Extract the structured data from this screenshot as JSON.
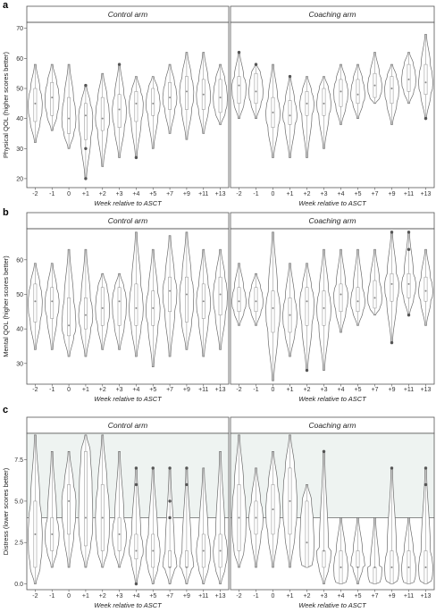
{
  "chart_data": [
    {
      "panel": "a",
      "type": "violin",
      "ylabel": "Physical QOL (higher scores better)",
      "xlabel": "Week relative to ASCT",
      "ylim": [
        17,
        72
      ],
      "yticks": [
        20,
        30,
        40,
        50,
        60,
        70
      ],
      "categories": [
        "-2",
        "-1",
        "0",
        "+1",
        "+2",
        "+3",
        "+4",
        "+5",
        "+7",
        "+9",
        "+11",
        "+13"
      ],
      "facets": [
        {
          "name": "Control arm",
          "groups": [
            {
              "min": 32,
              "q1": 39,
              "median": 45,
              "q3": 50,
              "max": 58
            },
            {
              "min": 36,
              "q1": 41,
              "median": 47,
              "q3": 52,
              "max": 58
            },
            {
              "min": 30,
              "q1": 35,
              "median": 40,
              "q3": 47,
              "max": 58
            },
            {
              "min": 20,
              "q1": 33,
              "median": 41,
              "q3": 45,
              "max": 51,
              "outliers": [
                20,
                30,
                51
              ]
            },
            {
              "min": 24,
              "q1": 36,
              "median": 40,
              "q3": 47,
              "max": 55
            },
            {
              "min": 27,
              "q1": 37,
              "median": 43,
              "q3": 48,
              "max": 58,
              "outliers": [
                58
              ]
            },
            {
              "min": 27,
              "q1": 39,
              "median": 45,
              "q3": 49,
              "max": 54,
              "outliers": [
                27
              ]
            },
            {
              "min": 30,
              "q1": 41,
              "median": 45,
              "q3": 50,
              "max": 54
            },
            {
              "min": 35,
              "q1": 43,
              "median": 47,
              "q3": 52,
              "max": 58
            },
            {
              "min": 33,
              "q1": 43,
              "median": 49,
              "q3": 54,
              "max": 62
            },
            {
              "min": 35,
              "q1": 43,
              "median": 48,
              "q3": 53,
              "max": 62
            },
            {
              "min": 38,
              "q1": 42,
              "median": 47,
              "q3": 53,
              "max": 58
            }
          ]
        },
        {
          "name": "Coaching arm",
          "groups": [
            {
              "min": 40,
              "q1": 45,
              "median": 51,
              "q3": 54,
              "max": 62,
              "outliers": [
                62
              ]
            },
            {
              "min": 40,
              "q1": 45,
              "median": 49,
              "q3": 55,
              "max": 58,
              "outliers": [
                58
              ]
            },
            {
              "min": 27,
              "q1": 37,
              "median": 42,
              "q3": 47,
              "max": 58
            },
            {
              "min": 27,
              "q1": 38,
              "median": 41,
              "q3": 46,
              "max": 54,
              "outliers": [
                54
              ]
            },
            {
              "min": 27,
              "q1": 41,
              "median": 45,
              "q3": 49,
              "max": 54
            },
            {
              "min": 30,
              "q1": 41,
              "median": 45,
              "q3": 50,
              "max": 54
            },
            {
              "min": 38,
              "q1": 44,
              "median": 49,
              "q3": 53,
              "max": 58
            },
            {
              "min": 40,
              "q1": 45,
              "median": 48,
              "q3": 53,
              "max": 58
            },
            {
              "min": 45,
              "q1": 47,
              "median": 51,
              "q3": 55,
              "max": 62
            },
            {
              "min": 38,
              "q1": 45,
              "median": 50,
              "q3": 54,
              "max": 58
            },
            {
              "min": 45,
              "q1": 49,
              "median": 53,
              "q3": 58,
              "max": 62
            },
            {
              "min": 40,
              "q1": 48,
              "median": 52,
              "q3": 58,
              "max": 68,
              "outliers": [
                40
              ]
            }
          ]
        }
      ]
    },
    {
      "panel": "b",
      "type": "violin",
      "ylabel": "Mental QOL (higher scores better)",
      "xlabel": "Week relative to ASCT",
      "ylim": [
        24,
        69
      ],
      "yticks": [
        30,
        40,
        50,
        60
      ],
      "categories": [
        "-2",
        "-1",
        "0",
        "+1",
        "+2",
        "+3",
        "+4",
        "+5",
        "+7",
        "+9",
        "+11",
        "+13"
      ],
      "facets": [
        {
          "name": "Control arm",
          "groups": [
            {
              "min": 34,
              "q1": 42,
              "median": 48,
              "q3": 53,
              "max": 59
            },
            {
              "min": 34,
              "q1": 43,
              "median": 48,
              "q3": 52,
              "max": 59
            },
            {
              "min": 32,
              "q1": 38,
              "median": 41,
              "q3": 49,
              "max": 63
            },
            {
              "min": 32,
              "q1": 40,
              "median": 44,
              "q3": 49,
              "max": 63
            },
            {
              "min": 34,
              "q1": 41,
              "median": 46,
              "q3": 52,
              "max": 56
            },
            {
              "min": 34,
              "q1": 41,
              "median": 48,
              "q3": 52,
              "max": 56
            },
            {
              "min": 32,
              "q1": 41,
              "median": 46,
              "q3": 53,
              "max": 68
            },
            {
              "min": 29,
              "q1": 41,
              "median": 46,
              "q3": 51,
              "max": 63
            },
            {
              "min": 32,
              "q1": 45,
              "median": 51,
              "q3": 55,
              "max": 67
            },
            {
              "min": 34,
              "q1": 42,
              "median": 50,
              "q3": 55,
              "max": 68
            },
            {
              "min": 32,
              "q1": 43,
              "median": 48,
              "q3": 53,
              "max": 63
            },
            {
              "min": 34,
              "q1": 44,
              "median": 50,
              "q3": 55,
              "max": 63
            }
          ]
        },
        {
          "name": "Coaching arm",
          "groups": [
            {
              "min": 41,
              "q1": 45,
              "median": 48,
              "q3": 52,
              "max": 59
            },
            {
              "min": 41,
              "q1": 45,
              "median": 48,
              "q3": 52,
              "max": 56
            },
            {
              "min": 25,
              "q1": 39,
              "median": 46,
              "q3": 51,
              "max": 68
            },
            {
              "min": 32,
              "q1": 39,
              "median": 44,
              "q3": 49,
              "max": 59
            },
            {
              "min": 28,
              "q1": 41,
              "median": 48,
              "q3": 52,
              "max": 59,
              "outliers": [
                28
              ]
            },
            {
              "min": 28,
              "q1": 41,
              "median": 46,
              "q3": 51,
              "max": 63
            },
            {
              "min": 39,
              "q1": 45,
              "median": 50,
              "q3": 53,
              "max": 63
            },
            {
              "min": 41,
              "q1": 45,
              "median": 48,
              "q3": 52,
              "max": 63
            },
            {
              "min": 44,
              "q1": 46,
              "median": 49,
              "q3": 54,
              "max": 63
            },
            {
              "min": 36,
              "q1": 48,
              "median": 53,
              "q3": 56,
              "max": 68,
              "outliers": [
                36,
                68
              ]
            },
            {
              "min": 44,
              "q1": 49,
              "median": 53,
              "q3": 56,
              "max": 68,
              "outliers": [
                44,
                63,
                68
              ]
            },
            {
              "min": 41,
              "q1": 48,
              "median": 51,
              "q3": 55,
              "max": 63
            }
          ]
        }
      ]
    },
    {
      "panel": "c",
      "type": "violin",
      "ylabel": "Distress (lower scores better)",
      "xlabel": "Week relative to ASCT",
      "ylim": [
        -0.35,
        9.1
      ],
      "yticks": [
        0.0,
        2.5,
        5.0,
        7.5
      ],
      "threshold": 4,
      "categories": [
        "-2",
        "-1",
        "0",
        "+1",
        "+2",
        "+3",
        "+4",
        "+5",
        "+7",
        "+9",
        "+11",
        "+13"
      ],
      "facets": [
        {
          "name": "Control arm",
          "groups": [
            {
              "min": 0,
              "q1": 1,
              "median": 3,
              "q3": 5,
              "max": 9
            },
            {
              "min": 1,
              "q1": 2,
              "median": 3,
              "q3": 4,
              "max": 8
            },
            {
              "min": 1,
              "q1": 3,
              "median": 5,
              "q3": 6,
              "max": 8
            },
            {
              "min": 1,
              "q1": 2.3,
              "median": 4,
              "q3": 8,
              "max": 9
            },
            {
              "min": 1,
              "q1": 2,
              "median": 4,
              "q3": 6,
              "max": 9
            },
            {
              "min": 1,
              "q1": 2,
              "median": 3,
              "q3": 4,
              "max": 8
            },
            {
              "min": 0,
              "q1": 1.5,
              "median": 2,
              "q3": 3,
              "max": 7,
              "outliers": [
                0,
                6,
                7
              ]
            },
            {
              "min": 0,
              "q1": 1,
              "median": 2,
              "q3": 3,
              "max": 7,
              "outliers": [
                7
              ]
            },
            {
              "min": 0,
              "q1": 1,
              "median": 1,
              "q3": 2,
              "max": 7,
              "outliers": [
                4,
                5,
                7
              ]
            },
            {
              "min": 0,
              "q1": 1,
              "median": 1,
              "q3": 2,
              "max": 7,
              "outliers": [
                6,
                7
              ]
            },
            {
              "min": 0,
              "q1": 1,
              "median": 2,
              "q3": 3,
              "max": 7
            },
            {
              "min": 0,
              "q1": 1,
              "median": 2,
              "q3": 3,
              "max": 8
            }
          ]
        },
        {
          "name": "Coaching arm",
          "groups": [
            {
              "min": 1,
              "q1": 2,
              "median": 4,
              "q3": 6,
              "max": 9
            },
            {
              "min": 1,
              "q1": 3,
              "median": 4,
              "q3": 5,
              "max": 7
            },
            {
              "min": 1,
              "q1": 3,
              "median": 4.5,
              "q3": 6,
              "max": 8
            },
            {
              "min": 1,
              "q1": 3,
              "median": 5,
              "q3": 7,
              "max": 9
            },
            {
              "min": 1,
              "q1": 1,
              "median": 2.5,
              "q3": 5,
              "max": 6
            },
            {
              "min": 0,
              "q1": 1,
              "median": 2,
              "q3": 2,
              "max": 8,
              "outliers": [
                8
              ]
            },
            {
              "min": 0,
              "q1": 0,
              "median": 1,
              "q3": 2,
              "max": 4
            },
            {
              "min": 0,
              "q1": 1,
              "median": 1,
              "q3": 2,
              "max": 4
            },
            {
              "min": 0,
              "q1": 0,
              "median": 1,
              "q3": 1,
              "max": 4
            },
            {
              "min": 0,
              "q1": 0,
              "median": 1,
              "q3": 2,
              "max": 7,
              "outliers": [
                7
              ]
            },
            {
              "min": 0,
              "q1": 0,
              "median": 1,
              "q3": 2,
              "max": 4
            },
            {
              "min": 0,
              "q1": 0,
              "median": 1,
              "q3": 2,
              "max": 7,
              "outliers": [
                6,
                7
              ]
            }
          ]
        }
      ]
    }
  ]
}
